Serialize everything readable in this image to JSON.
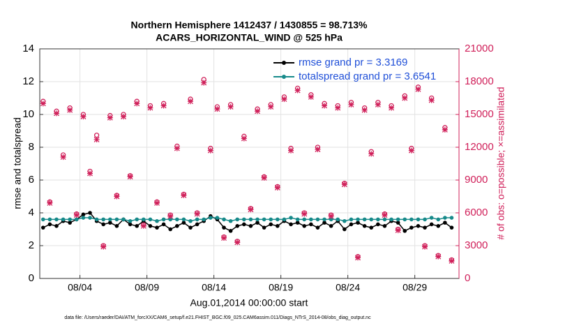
{
  "chart_data": {
    "type": "line",
    "title": "Northern Hemisphere 1412437 / 1430855 = 98.713%",
    "subtitle": "ACARS_HORIZONTAL_WIND @ 525 hPa",
    "x_label": "Aug.01,2014 00:00:00 start",
    "y_label": "rmse and totalspread",
    "y2_label": "# of obs: o=possible; ×=assimilated",
    "footnote": "data file: /Users/raeder/DAI/ATM_forcXX/CAM6_setup/f.e21.FHIST_BGC.f09_025.CAM6assim.011/Diags_NTrS_2014-08/obs_diag_output.nc",
    "x": [
      0.25,
      0.75,
      1.25,
      1.75,
      2.25,
      2.75,
      3.25,
      3.75,
      4.25,
      4.75,
      5.25,
      5.75,
      6.25,
      6.75,
      7.25,
      7.75,
      8.25,
      8.75,
      9.25,
      9.75,
      10.25,
      10.75,
      11.25,
      11.75,
      12.25,
      12.75,
      13.25,
      13.75,
      14.25,
      14.75,
      15.25,
      15.75,
      16.25,
      16.75,
      17.25,
      17.75,
      18.25,
      18.75,
      19.25,
      19.75,
      20.25,
      20.75,
      21.25,
      21.75,
      22.25,
      22.75,
      23.25,
      23.75,
      24.25,
      24.75,
      25.25,
      25.75,
      26.25,
      26.75,
      27.25,
      27.75,
      28.25,
      28.75,
      29.25,
      29.75,
      30.25,
      30.75
    ],
    "xlim": [
      0,
      31.3
    ],
    "xticks": [
      {
        "value": 3,
        "label": "08/04"
      },
      {
        "value": 8,
        "label": "08/09"
      },
      {
        "value": 13,
        "label": "08/14"
      },
      {
        "value": 18,
        "label": "08/19"
      },
      {
        "value": 23,
        "label": "08/24"
      },
      {
        "value": 28,
        "label": "08/29"
      }
    ],
    "ylim": [
      0,
      14
    ],
    "yticks": [
      0,
      2,
      4,
      6,
      8,
      10,
      12,
      14
    ],
    "y2lim": [
      0,
      21000
    ],
    "y2ticks": [
      0,
      3000,
      6000,
      9000,
      12000,
      15000,
      18000,
      21000
    ],
    "y2_color": "#d0205a",
    "grid": true,
    "legend": "top-right",
    "legend_color": "#1f4fd8",
    "series": [
      {
        "name": "rmse grand pr = 3.3169",
        "color": "#000000",
        "marker": "dot",
        "values": [
          3.1,
          3.3,
          3.2,
          3.5,
          3.4,
          3.6,
          3.9,
          4.0,
          3.5,
          3.3,
          3.4,
          3.2,
          3.6,
          3.3,
          3.2,
          3.5,
          3.2,
          3.1,
          3.3,
          3.0,
          3.2,
          3.4,
          3.1,
          3.3,
          3.5,
          3.8,
          3.6,
          3.1,
          2.9,
          3.2,
          3.3,
          3.2,
          3.4,
          3.1,
          3.3,
          3.2,
          3.5,
          3.3,
          3.4,
          3.2,
          3.3,
          3.1,
          3.4,
          3.2,
          3.5,
          3.0,
          3.3,
          3.4,
          3.2,
          3.1,
          3.3,
          3.2,
          3.5,
          3.4,
          2.9,
          3.1,
          3.2,
          3.1,
          3.3,
          3.2,
          3.4,
          3.1
        ]
      },
      {
        "name": "totalspread grand pr = 3.6541",
        "color": "#178a8a",
        "marker": "dot",
        "values": [
          3.6,
          3.6,
          3.6,
          3.6,
          3.6,
          3.6,
          3.7,
          3.7,
          3.6,
          3.6,
          3.6,
          3.6,
          3.6,
          3.5,
          3.6,
          3.6,
          3.6,
          3.5,
          3.6,
          3.6,
          3.6,
          3.6,
          3.5,
          3.6,
          3.6,
          3.7,
          3.7,
          3.6,
          3.5,
          3.6,
          3.6,
          3.6,
          3.6,
          3.6,
          3.6,
          3.6,
          3.6,
          3.7,
          3.6,
          3.6,
          3.6,
          3.6,
          3.6,
          3.6,
          3.6,
          3.5,
          3.6,
          3.6,
          3.6,
          3.6,
          3.6,
          3.6,
          3.6,
          3.6,
          3.6,
          3.6,
          3.6,
          3.6,
          3.7,
          3.6,
          3.7,
          3.7
        ]
      },
      {
        "name": "possible",
        "color": "#d0205a",
        "marker": "circle",
        "axis": "y2",
        "values": [
          16200,
          7000,
          15300,
          11300,
          15600,
          5900,
          15000,
          9800,
          13100,
          3000,
          14900,
          7600,
          15000,
          9400,
          16200,
          4900,
          15800,
          7000,
          16000,
          5800,
          12100,
          7700,
          16400,
          6000,
          18200,
          11900,
          15700,
          3800,
          15900,
          3400,
          13000,
          6400,
          15500,
          9300,
          15900,
          8400,
          16600,
          11900,
          17400,
          6000,
          16800,
          12000,
          16000,
          5800,
          15800,
          8700,
          16100,
          2000,
          15600,
          11600,
          16100,
          5900,
          15800,
          4500,
          16700,
          11900,
          17500,
          3000,
          16500,
          2100,
          13800,
          1700
        ]
      },
      {
        "name": "assimilated",
        "color": "#d0205a",
        "marker": "cross",
        "axis": "y2",
        "values": [
          16000,
          6900,
          15100,
          11100,
          15400,
          5800,
          14800,
          9600,
          12700,
          2900,
          14700,
          7500,
          14800,
          9300,
          16000,
          4800,
          15600,
          6900,
          15800,
          5700,
          11900,
          7600,
          16200,
          5900,
          17900,
          11700,
          15500,
          3700,
          15700,
          3300,
          12800,
          6300,
          15300,
          9200,
          15700,
          8300,
          16400,
          11700,
          17200,
          5900,
          16600,
          11800,
          15800,
          5700,
          15600,
          8600,
          15900,
          1900,
          15400,
          11400,
          15900,
          5800,
          15600,
          4400,
          16500,
          11700,
          17300,
          2900,
          16300,
          2000,
          13600,
          1600
        ]
      }
    ]
  }
}
